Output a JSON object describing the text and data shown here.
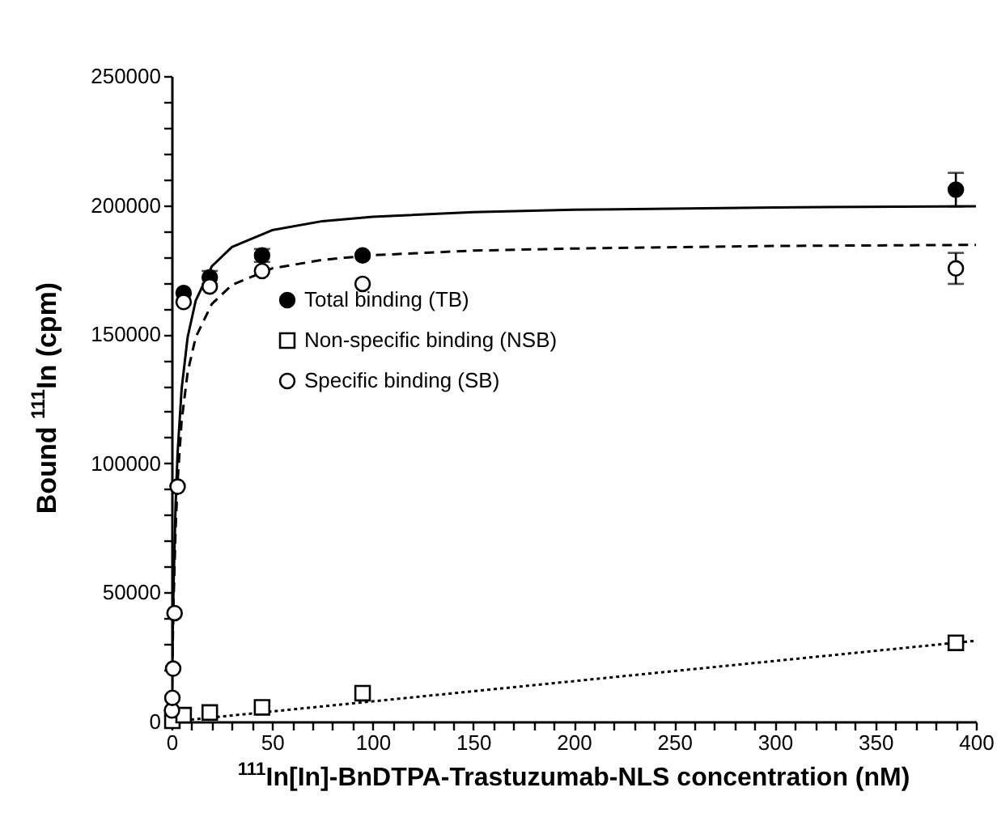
{
  "chart_data": {
    "type": "scatter",
    "xlabel": "$^{111}$In[In]-BnDTPA-Trastuzumab-NLS concentration (nM)",
    "ylabel": "Bound $^{111}$In (cpm)",
    "xlim": [
      0,
      400
    ],
    "ylim": [
      0,
      250000
    ],
    "xticks": [
      0,
      {
        "value": 10,
        "label": null
      },
      {
        "value": 20,
        "label": null
      },
      {
        "value": 30,
        "label": null
      },
      {
        "value": 40,
        "label": null
      },
      50,
      {
        "value": 60,
        "label": null
      },
      {
        "value": 70,
        "label": null
      },
      {
        "value": 80,
        "label": null
      },
      {
        "value": 90,
        "label": null
      },
      100,
      {
        "value": 110,
        "label": null
      },
      {
        "value": 120,
        "label": null
      },
      {
        "value": 130,
        "label": null
      },
      {
        "value": 140,
        "label": null
      },
      150,
      {
        "value": 160,
        "label": null
      },
      {
        "value": 170,
        "label": null
      },
      {
        "value": 180,
        "label": null
      },
      {
        "value": 190,
        "label": null
      },
      200,
      {
        "value": 210,
        "label": null
      },
      {
        "value": 220,
        "label": null
      },
      {
        "value": 230,
        "label": null
      },
      {
        "value": 240,
        "label": null
      },
      250,
      {
        "value": 260,
        "label": null
      },
      {
        "value": 270,
        "label": null
      },
      {
        "value": 280,
        "label": null
      },
      {
        "value": 290,
        "label": null
      },
      300,
      {
        "value": 310,
        "label": null
      },
      {
        "value": 320,
        "label": null
      },
      {
        "value": 330,
        "label": null
      },
      {
        "value": 340,
        "label": null
      },
      350,
      {
        "value": 360,
        "label": null
      },
      {
        "value": 370,
        "label": null
      },
      {
        "value": 380,
        "label": null
      },
      {
        "value": 390,
        "label": null
      },
      400
    ],
    "yticks": [
      0,
      {
        "value": 10000,
        "label": null
      },
      {
        "value": 20000,
        "label": null
      },
      {
        "value": 30000,
        "label": null
      },
      {
        "value": 40000,
        "label": null
      },
      50000,
      {
        "value": 60000,
        "label": null
      },
      {
        "value": 70000,
        "label": null
      },
      {
        "value": 80000,
        "label": null
      },
      {
        "value": 90000,
        "label": null
      },
      100000,
      {
        "value": 110000,
        "label": null
      },
      {
        "value": 120000,
        "label": null
      },
      {
        "value": 130000,
        "label": null
      },
      {
        "value": 140000,
        "label": null
      },
      150000,
      {
        "value": 160000,
        "label": null
      },
      {
        "value": 170000,
        "label": null
      },
      {
        "value": 180000,
        "label": null
      },
      {
        "value": 190000,
        "label": null
      },
      200000,
      {
        "value": 210000,
        "label": null
      },
      {
        "value": 220000,
        "label": null
      },
      {
        "value": 230000,
        "label": null
      },
      {
        "value": 240000,
        "label": null
      },
      250000
    ],
    "grid": false,
    "legend": "left",
    "series": [
      {
        "name": "Total binding (TB)",
        "marker": "circle",
        "color": "#000000",
        "x": [
          6,
          19,
          45,
          95,
          390
        ],
        "values": [
          166000,
          172000,
          180500,
          180500,
          206000
        ],
        "errors": [
          null,
          2500,
          2500,
          null,
          6500
        ]
      },
      {
        "name": "Non-specific binding (NSB)",
        "marker": "square",
        "color": "#000000",
        "x": [
          0.4,
          6,
          19,
          45,
          95,
          390
        ],
        "values": [
          300,
          2500,
          3500,
          5500,
          11000,
          30500
        ]
      },
      {
        "name": "Specific binding (SB)",
        "marker": "circle",
        "color": "#000000",
        "x": [
          0.2,
          0.4,
          0.8,
          1.5,
          3,
          6,
          19,
          45,
          95,
          390
        ],
        "values": [
          4300,
          9200,
          20500,
          42000,
          91000,
          162500,
          168500,
          174500,
          169500,
          175500
        ],
        "errors": [
          null,
          null,
          null,
          null,
          null,
          null,
          null,
          null,
          null,
          6000
        ]
      },
      {
        "type": "line",
        "line_style": "solid",
        "color": "#000000",
        "x": [
          0,
          0.5,
          1,
          2,
          3,
          5,
          8,
          12,
          20,
          30,
          50,
          75,
          100,
          150,
          200,
          300,
          400
        ],
        "values": [
          0,
          30500,
          52900,
          83800,
          104000,
          128800,
          148900,
          163000,
          176300,
          183800,
          190300,
          193800,
          195500,
          197300,
          198200,
          199100,
          199600
        ]
      },
      {
        "type": "line",
        "line_style": "dashed",
        "color": "#000000",
        "x": [
          0,
          0.5,
          1,
          2,
          3,
          5,
          8,
          12,
          20,
          30,
          50,
          75,
          100,
          150,
          200,
          300,
          400
        ],
        "values": [
          0,
          26600,
          46500,
          74400,
          93000,
          116300,
          135300,
          148800,
          161700,
          169100,
          175500,
          178800,
          180600,
          182400,
          183200,
          184200,
          184600
        ]
      },
      {
        "type": "line",
        "line_style": "dotted",
        "color": "#000000",
        "x": [
          0,
          400
        ],
        "values": [
          0,
          31300
        ]
      }
    ]
  }
}
